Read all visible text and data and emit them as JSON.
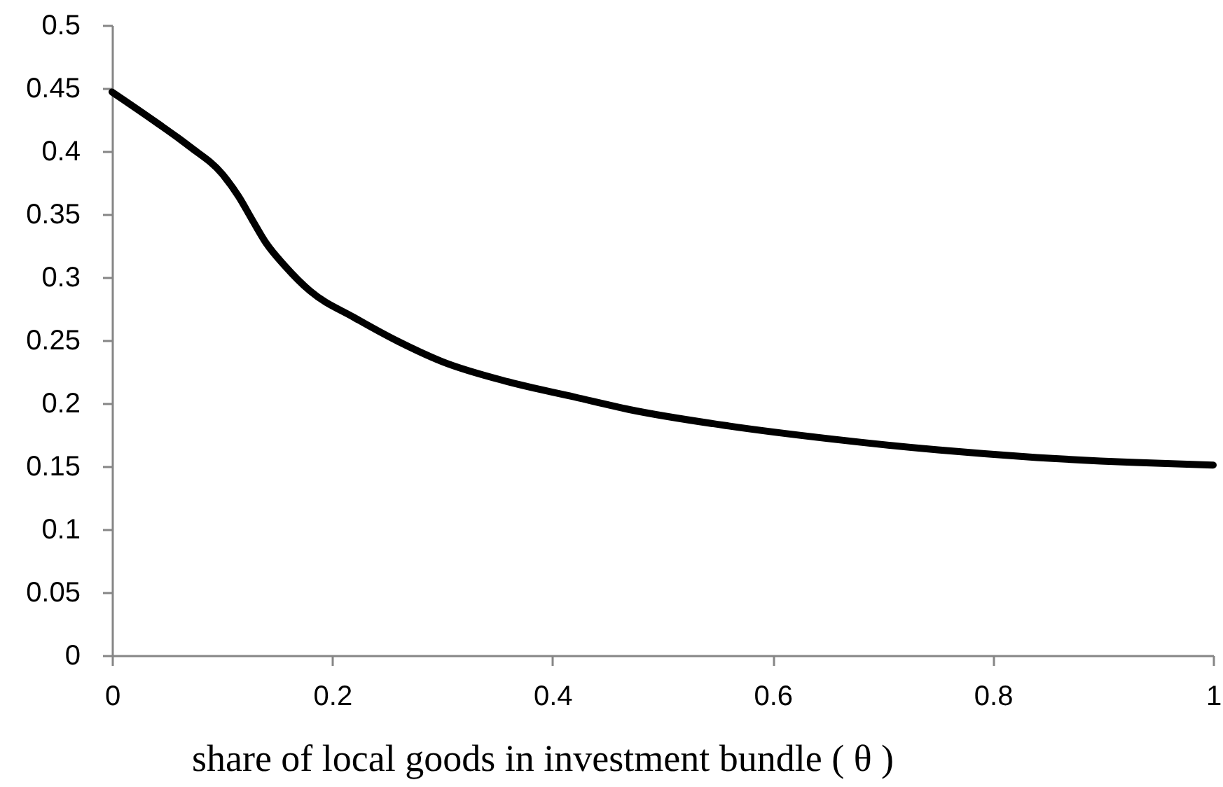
{
  "chart_data": {
    "type": "line",
    "xlabel": "share of local goods in investment bundle ( θ )",
    "x": [
      0,
      0.04,
      0.07,
      0.1,
      0.115,
      0.127,
      0.14,
      0.157,
      0.18,
      0.22,
      0.26,
      0.3,
      0.36,
      0.42,
      0.47,
      0.56,
      0.65,
      0.75,
      0.84,
      0.93,
      1
    ],
    "series": [
      {
        "color": "#000000",
        "values": [
          0.447,
          0.423,
          0.404,
          0.382,
          0.364,
          0.346,
          0.327,
          0.309,
          0.289,
          0.268,
          0.249,
          0.233,
          0.217,
          0.205,
          0.195,
          0.182,
          0.172,
          0.163,
          0.157,
          0.153,
          0.151
        ]
      }
    ],
    "xlim": [
      0,
      1
    ],
    "ylim": [
      0,
      0.5
    ],
    "xticks": [
      0,
      0.2,
      0.4,
      0.6,
      0.8,
      1
    ],
    "yticks": [
      0,
      0.05,
      0.1,
      0.15,
      0.2,
      0.25,
      0.3,
      0.35,
      0.4,
      0.45,
      0.5
    ],
    "grid": false,
    "line_style": "solid"
  }
}
